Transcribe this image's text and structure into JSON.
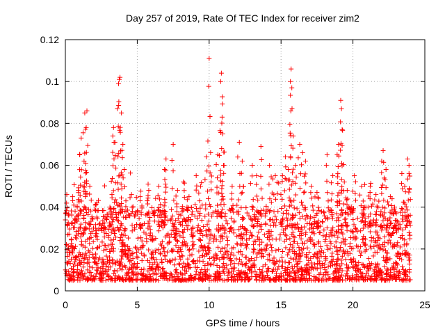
{
  "chart_data": {
    "type": "scatter",
    "title": "Day 257 of 2019, Rate Of TEC Index for receiver zim2",
    "xlabel": "GPS time / hours",
    "ylabel": "ROTI / TECUs",
    "xlim": [
      0,
      25
    ],
    "ylim": [
      0,
      0.12
    ],
    "xticks": [
      "0",
      "5",
      "10",
      "15",
      "20",
      "25"
    ],
    "yticks": [
      "0",
      "0.02",
      "0.04",
      "0.06",
      "0.08",
      "0.1",
      "0.12"
    ],
    "grid": true,
    "marker": "+",
    "color": "#ff0000",
    "data_extent": {
      "x_min": 0,
      "x_max": 24
    },
    "typical_band": [
      0.005,
      0.03
    ],
    "peaks": [
      {
        "x": 0.1,
        "y": 0.046
      },
      {
        "x": 0.5,
        "y": 0.045
      },
      {
        "x": 0.9,
        "y": 0.048
      },
      {
        "x": 1.0,
        "y": 0.065
      },
      {
        "x": 1.1,
        "y": 0.073
      },
      {
        "x": 1.3,
        "y": 0.062
      },
      {
        "x": 1.35,
        "y": 0.085
      },
      {
        "x": 1.45,
        "y": 0.078
      },
      {
        "x": 1.5,
        "y": 0.086
      },
      {
        "x": 1.7,
        "y": 0.05
      },
      {
        "x": 2.2,
        "y": 0.042
      },
      {
        "x": 2.6,
        "y": 0.032
      },
      {
        "x": 3.1,
        "y": 0.04
      },
      {
        "x": 3.3,
        "y": 0.074
      },
      {
        "x": 3.35,
        "y": 0.078
      },
      {
        "x": 3.45,
        "y": 0.071
      },
      {
        "x": 3.7,
        "y": 0.099
      },
      {
        "x": 3.75,
        "y": 0.101
      },
      {
        "x": 3.8,
        "y": 0.102
      },
      {
        "x": 3.9,
        "y": 0.085
      },
      {
        "x": 4.0,
        "y": 0.07
      },
      {
        "x": 4.1,
        "y": 0.058
      },
      {
        "x": 4.6,
        "y": 0.046
      },
      {
        "x": 5.2,
        "y": 0.045
      },
      {
        "x": 5.8,
        "y": 0.048
      },
      {
        "x": 6.5,
        "y": 0.05
      },
      {
        "x": 6.9,
        "y": 0.058
      },
      {
        "x": 7.0,
        "y": 0.063
      },
      {
        "x": 7.5,
        "y": 0.07
      },
      {
        "x": 7.8,
        "y": 0.048
      },
      {
        "x": 8.2,
        "y": 0.052
      },
      {
        "x": 8.6,
        "y": 0.045
      },
      {
        "x": 9.1,
        "y": 0.055
      },
      {
        "x": 9.4,
        "y": 0.05
      },
      {
        "x": 9.8,
        "y": 0.064
      },
      {
        "x": 10.0,
        "y": 0.111
      },
      {
        "x": 10.1,
        "y": 0.066
      },
      {
        "x": 10.6,
        "y": 0.065
      },
      {
        "x": 10.8,
        "y": 0.1
      },
      {
        "x": 10.85,
        "y": 0.104
      },
      {
        "x": 10.9,
        "y": 0.083
      },
      {
        "x": 10.95,
        "y": 0.075
      },
      {
        "x": 11.0,
        "y": 0.06
      },
      {
        "x": 11.6,
        "y": 0.05
      },
      {
        "x": 12.1,
        "y": 0.071
      },
      {
        "x": 12.3,
        "y": 0.062
      },
      {
        "x": 13.0,
        "y": 0.06
      },
      {
        "x": 13.3,
        "y": 0.055
      },
      {
        "x": 13.6,
        "y": 0.069
      },
      {
        "x": 14.2,
        "y": 0.06
      },
      {
        "x": 14.6,
        "y": 0.055
      },
      {
        "x": 15.1,
        "y": 0.055
      },
      {
        "x": 15.3,
        "y": 0.064
      },
      {
        "x": 15.5,
        "y": 0.058
      },
      {
        "x": 15.65,
        "y": 0.1
      },
      {
        "x": 15.7,
        "y": 0.106
      },
      {
        "x": 15.75,
        "y": 0.097
      },
      {
        "x": 15.85,
        "y": 0.074
      },
      {
        "x": 16.0,
        "y": 0.06
      },
      {
        "x": 16.3,
        "y": 0.07
      },
      {
        "x": 16.5,
        "y": 0.066
      },
      {
        "x": 16.7,
        "y": 0.062
      },
      {
        "x": 17.1,
        "y": 0.05
      },
      {
        "x": 17.5,
        "y": 0.047
      },
      {
        "x": 18.2,
        "y": 0.065
      },
      {
        "x": 18.6,
        "y": 0.055
      },
      {
        "x": 18.9,
        "y": 0.065
      },
      {
        "x": 19.0,
        "y": 0.07
      },
      {
        "x": 19.15,
        "y": 0.091
      },
      {
        "x": 19.2,
        "y": 0.087
      },
      {
        "x": 19.25,
        "y": 0.077
      },
      {
        "x": 19.4,
        "y": 0.052
      },
      {
        "x": 19.6,
        "y": 0.048
      },
      {
        "x": 20.1,
        "y": 0.055
      },
      {
        "x": 20.6,
        "y": 0.05
      },
      {
        "x": 20.8,
        "y": 0.04
      },
      {
        "x": 21.2,
        "y": 0.05
      },
      {
        "x": 21.6,
        "y": 0.046
      },
      {
        "x": 22.0,
        "y": 0.062
      },
      {
        "x": 22.1,
        "y": 0.067
      },
      {
        "x": 22.3,
        "y": 0.058
      },
      {
        "x": 22.6,
        "y": 0.045
      },
      {
        "x": 22.9,
        "y": 0.04
      },
      {
        "x": 23.4,
        "y": 0.056
      },
      {
        "x": 23.6,
        "y": 0.05
      },
      {
        "x": 23.8,
        "y": 0.063
      },
      {
        "x": 23.9,
        "y": 0.06
      }
    ]
  }
}
